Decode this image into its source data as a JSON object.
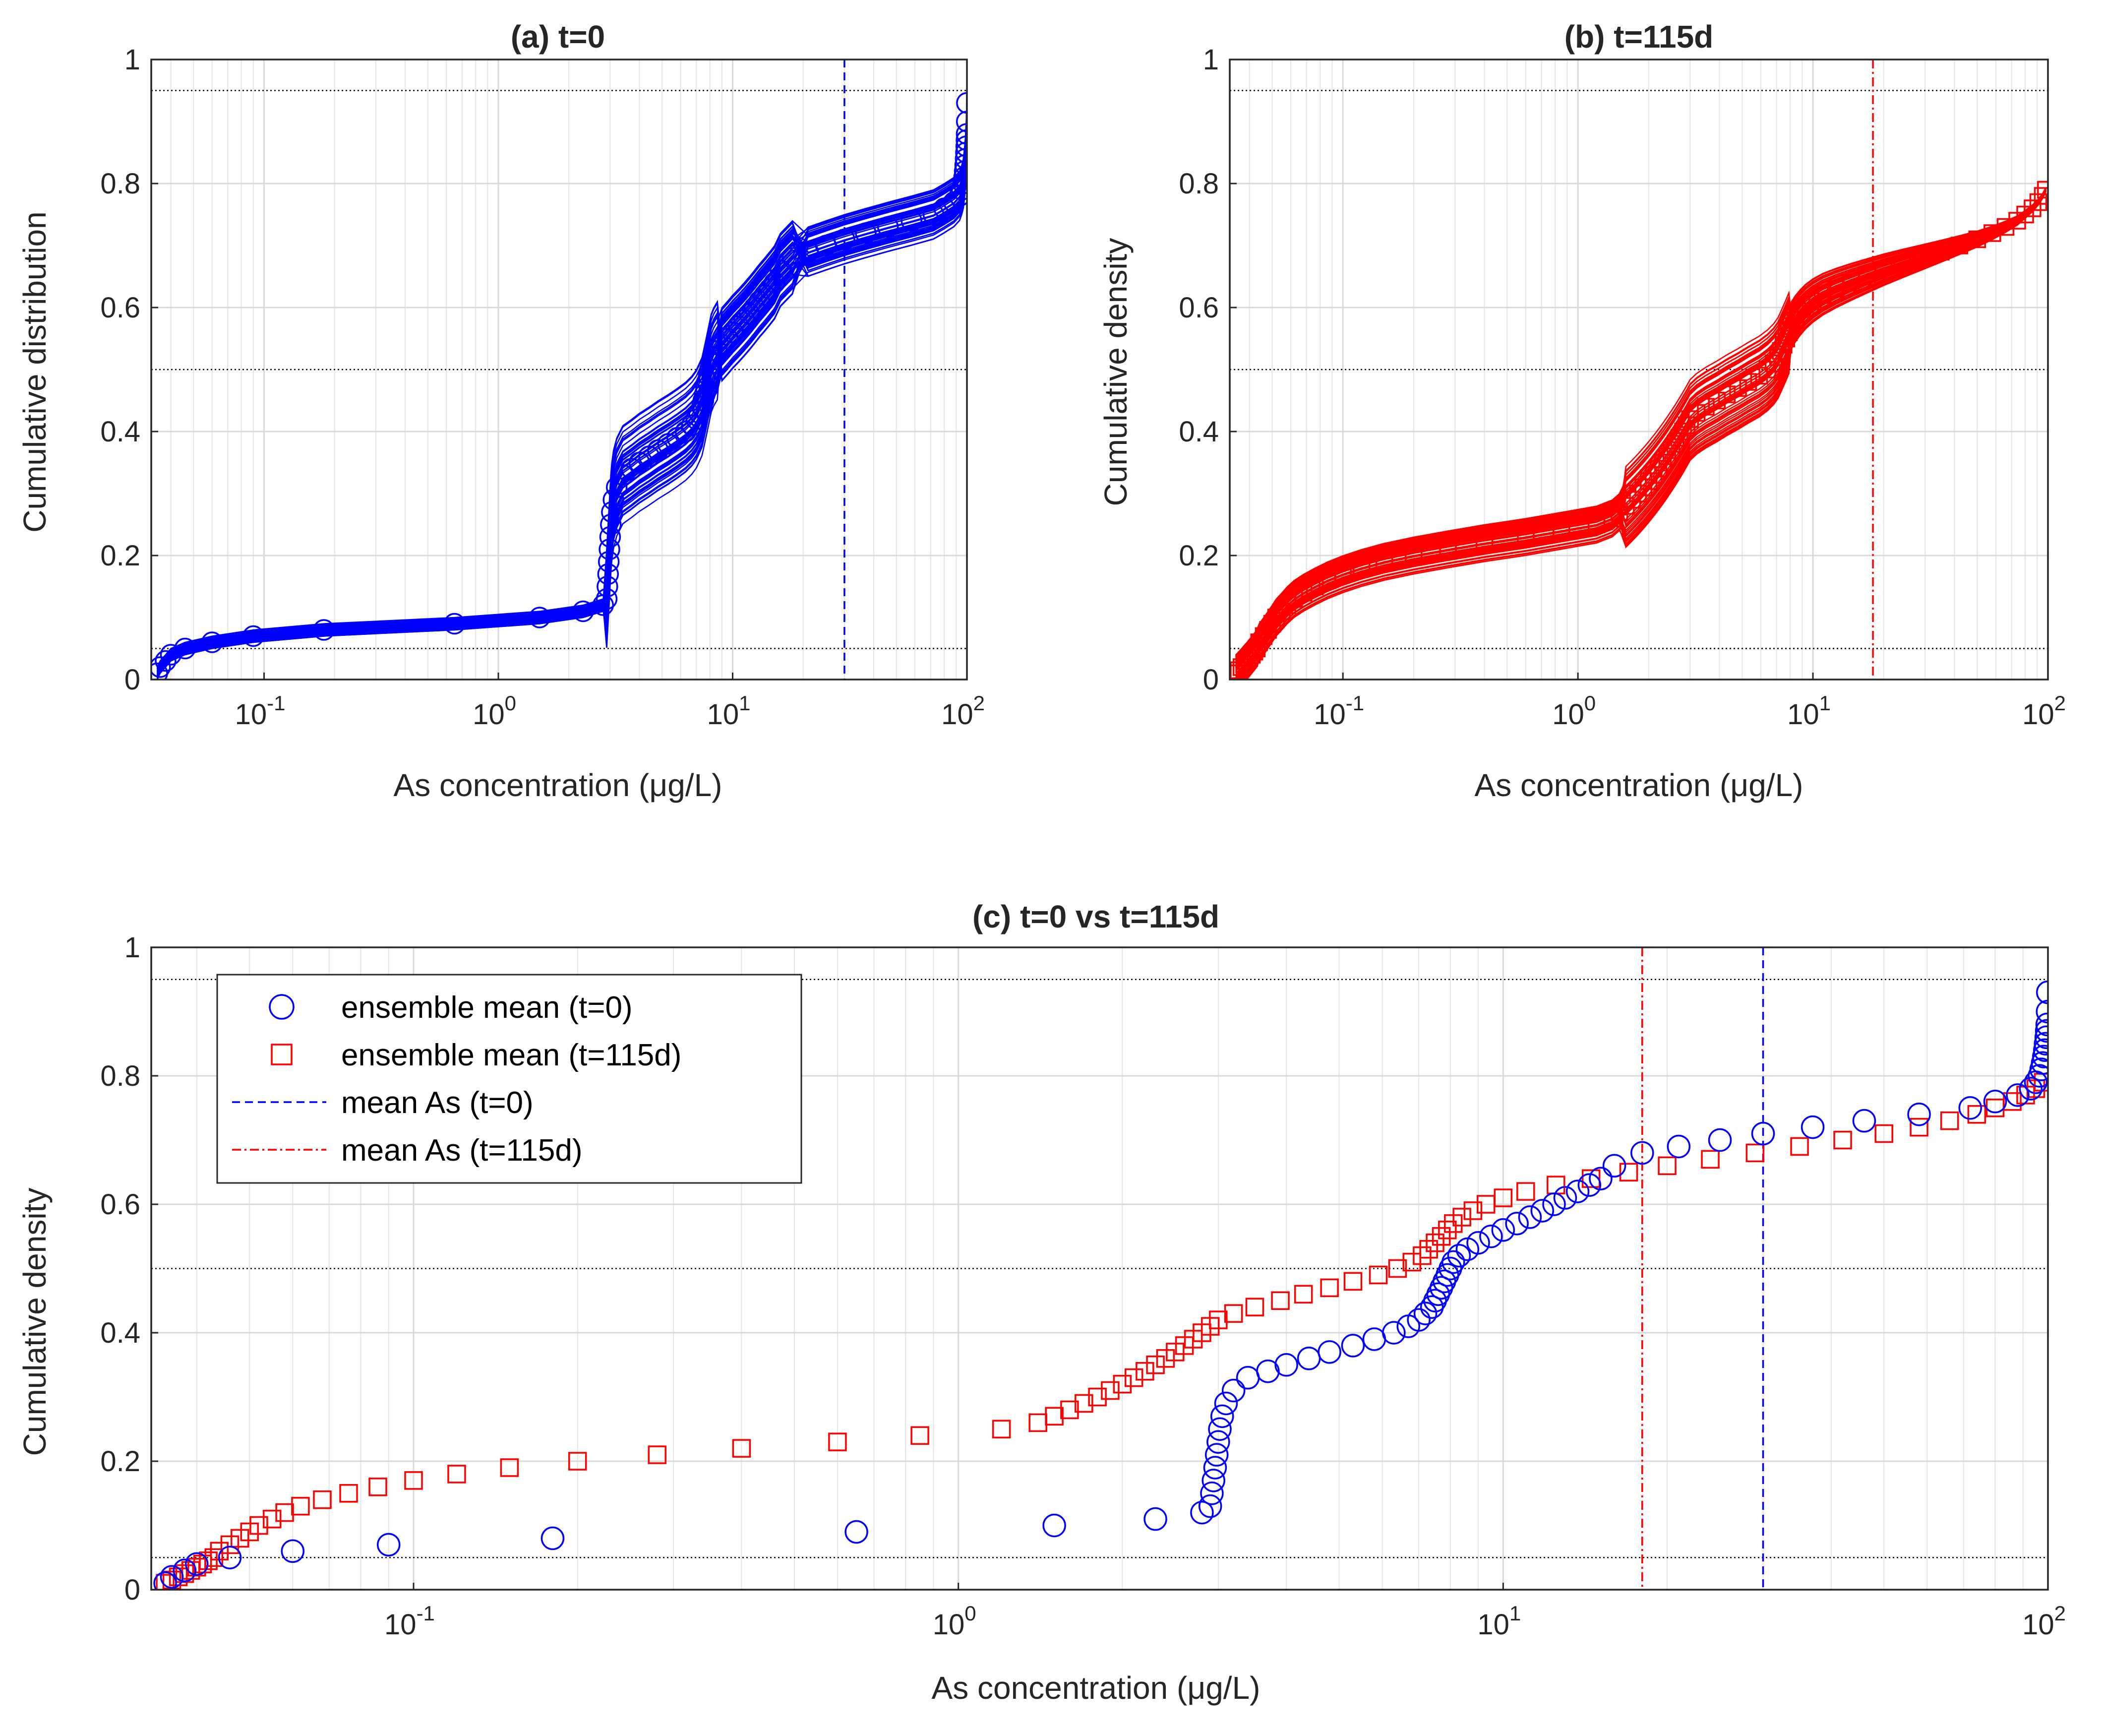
{
  "colors": {
    "t0": "#0000ff",
    "t115": "#ff0000",
    "threshold": "#000000",
    "grid": "#d9d9d9",
    "axis": "#262626"
  },
  "chart_data": [
    {
      "id": "a",
      "type": "line",
      "title": "(a) t=0",
      "xlabel": "As concentration (μg/L)",
      "ylabel": "Cumulative distribution",
      "xscale": "log",
      "xlim": [
        0.033,
        100
      ],
      "ylim": [
        0,
        1
      ],
      "grid": true,
      "x_ticks": [
        {
          "base": "10",
          "exp": "-1"
        },
        {
          "base": "10",
          "exp": "0"
        },
        {
          "base": "10",
          "exp": "1"
        },
        {
          "base": "10",
          "exp": "2"
        }
      ],
      "y_ticks": [
        "0",
        "0.2",
        "0.4",
        "0.6",
        "0.8",
        "1"
      ],
      "thresholds_y": [
        0.05,
        0.5,
        0.95
      ],
      "mean_as": 30,
      "ensemble_members": 60,
      "color": "#0000ff",
      "marker": "circle"
    },
    {
      "id": "b",
      "type": "line",
      "title": "(b) t=115d",
      "xlabel": "As concentration (μg/L)",
      "ylabel": "Cumulative density",
      "xscale": "log",
      "xlim": [
        0.033,
        100
      ],
      "ylim": [
        0,
        1
      ],
      "grid": true,
      "x_ticks": [
        {
          "base": "10",
          "exp": "-1"
        },
        {
          "base": "10",
          "exp": "0"
        },
        {
          "base": "10",
          "exp": "1"
        },
        {
          "base": "10",
          "exp": "2"
        }
      ],
      "y_ticks": [
        "0",
        "0.2",
        "0.4",
        "0.6",
        "0.8",
        "1"
      ],
      "thresholds_y": [
        0.05,
        0.5,
        0.95
      ],
      "mean_as": 18,
      "ensemble_members": 60,
      "color": "#ff0000",
      "marker": "square"
    },
    {
      "id": "c",
      "type": "scatter",
      "title": "(c) t=0 vs t=115d",
      "xlabel": "As concentration (μg/L)",
      "ylabel": "Cumulative density",
      "xscale": "log",
      "xlim": [
        0.033,
        100
      ],
      "ylim": [
        0,
        1
      ],
      "grid": true,
      "x_ticks": [
        {
          "base": "10",
          "exp": "-1"
        },
        {
          "base": "10",
          "exp": "0"
        },
        {
          "base": "10",
          "exp": "1"
        },
        {
          "base": "10",
          "exp": "2"
        }
      ],
      "y_ticks": [
        "0",
        "0.2",
        "0.4",
        "0.6",
        "0.8",
        "1"
      ],
      "thresholds_y": [
        0.05,
        0.5,
        0.95
      ],
      "legend_position": "top-left",
      "legend": [
        {
          "label": "ensemble mean (t=0)",
          "style": "circle",
          "color": "#0000ff"
        },
        {
          "label": "ensemble mean (t=115d)",
          "style": "square",
          "color": "#ff0000"
        },
        {
          "label": "mean As (t=0)",
          "style": "dashed",
          "color": "#0000ff"
        },
        {
          "label": "mean As (t=115d)",
          "style": "dashdot",
          "color": "#ff0000"
        }
      ],
      "mean_as_t0": 30,
      "mean_as_t115": 18
    }
  ],
  "curves": {
    "t0": {
      "x": [
        0.035,
        0.036,
        0.038,
        0.04,
        0.046,
        0.06,
        0.09,
        0.18,
        0.65,
        1.5,
        2.3,
        2.8,
        2.9,
        2.92,
        2.94,
        2.96,
        2.98,
        3.0,
        3.02,
        3.05,
        3.1,
        3.2,
        3.4,
        3.7,
        4.0,
        4.4,
        4.8,
        5.3,
        5.8,
        6.3,
        6.7,
        7.0,
        7.2,
        7.4,
        7.5,
        7.6,
        7.7,
        7.8,
        7.9,
        8.0,
        8.1,
        8.3,
        8.6,
        9.0,
        9.5,
        10.0,
        10.6,
        11.2,
        11.8,
        12.4,
        13.0,
        13.7,
        14.4,
        15.1,
        16.0,
        18.0,
        21.0,
        25.0,
        30.0,
        37.0,
        46.0,
        58.0,
        72.0,
        80.0,
        88.0,
        93.0,
        95.0,
        96.5,
        97.2,
        97.8,
        98.3,
        98.7,
        99.0,
        99.3,
        99.5,
        99.7,
        99.85,
        99.95
      ],
      "y": [
        0.01,
        0.02,
        0.03,
        0.04,
        0.05,
        0.06,
        0.07,
        0.08,
        0.09,
        0.1,
        0.11,
        0.12,
        0.13,
        0.15,
        0.17,
        0.19,
        0.21,
        0.23,
        0.25,
        0.27,
        0.29,
        0.31,
        0.33,
        0.34,
        0.35,
        0.36,
        0.37,
        0.38,
        0.39,
        0.4,
        0.41,
        0.42,
        0.43,
        0.44,
        0.45,
        0.46,
        0.47,
        0.48,
        0.49,
        0.5,
        0.51,
        0.52,
        0.53,
        0.54,
        0.55,
        0.56,
        0.57,
        0.58,
        0.59,
        0.6,
        0.61,
        0.62,
        0.63,
        0.64,
        0.66,
        0.68,
        0.69,
        0.7,
        0.71,
        0.72,
        0.73,
        0.74,
        0.75,
        0.76,
        0.77,
        0.78,
        0.79,
        0.8,
        0.81,
        0.82,
        0.83,
        0.84,
        0.85,
        0.86,
        0.87,
        0.88,
        0.9,
        0.93
      ]
    },
    "t115": {
      "x": [
        0.035,
        0.036,
        0.037,
        0.038,
        0.039,
        0.04,
        0.041,
        0.042,
        0.043,
        0.044,
        0.046,
        0.048,
        0.05,
        0.052,
        0.055,
        0.058,
        0.062,
        0.068,
        0.076,
        0.086,
        0.1,
        0.12,
        0.15,
        0.2,
        0.28,
        0.4,
        0.6,
        0.85,
        1.2,
        1.4,
        1.5,
        1.6,
        1.7,
        1.8,
        1.9,
        2.0,
        2.1,
        2.2,
        2.3,
        2.4,
        2.5,
        2.6,
        2.7,
        2.8,
        2.9,
        3.0,
        3.2,
        3.5,
        3.9,
        4.3,
        4.8,
        5.3,
        5.9,
        6.4,
        6.8,
        7.1,
        7.3,
        7.5,
        7.7,
        7.9,
        8.1,
        8.4,
        8.8,
        9.3,
        10.0,
        11.0,
        12.5,
        14.5,
        17.0,
        20.0,
        24.0,
        29.0,
        35.0,
        42.0,
        50.0,
        58.0,
        66.0,
        74.0,
        80.0,
        86.0,
        91.0,
        95.0,
        98.0
      ],
      "y": [
        0.01,
        0.015,
        0.02,
        0.025,
        0.03,
        0.035,
        0.04,
        0.045,
        0.05,
        0.06,
        0.07,
        0.08,
        0.09,
        0.1,
        0.11,
        0.12,
        0.13,
        0.14,
        0.15,
        0.16,
        0.17,
        0.18,
        0.19,
        0.2,
        0.21,
        0.22,
        0.23,
        0.24,
        0.25,
        0.26,
        0.27,
        0.28,
        0.29,
        0.3,
        0.31,
        0.32,
        0.33,
        0.34,
        0.35,
        0.36,
        0.37,
        0.38,
        0.39,
        0.4,
        0.41,
        0.42,
        0.43,
        0.44,
        0.45,
        0.46,
        0.47,
        0.48,
        0.49,
        0.5,
        0.51,
        0.52,
        0.53,
        0.54,
        0.55,
        0.56,
        0.57,
        0.58,
        0.59,
        0.6,
        0.61,
        0.62,
        0.63,
        0.64,
        0.65,
        0.66,
        0.67,
        0.68,
        0.69,
        0.7,
        0.71,
        0.72,
        0.73,
        0.74,
        0.75,
        0.76,
        0.77,
        0.78,
        0.79
      ]
    }
  }
}
